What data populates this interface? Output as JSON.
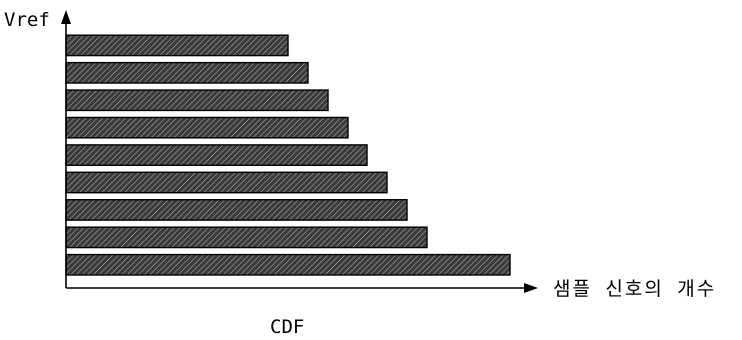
{
  "chart_data": {
    "type": "bar",
    "orientation": "horizontal",
    "ylabel": "Vref",
    "xlabel": "샘플 신호의 개수",
    "caption": "CDF",
    "grid": false,
    "bar_fill_pattern": "diagonal-hatch",
    "colors": {
      "bar_fill": "#3a3a3a",
      "hatch": "#bdbdbd",
      "outline": "#000000"
    },
    "bars": [
      {
        "level": 1,
        "count": 444
      },
      {
        "level": 2,
        "count": 361
      },
      {
        "level": 3,
        "count": 341
      },
      {
        "level": 4,
        "count": 321
      },
      {
        "level": 5,
        "count": 301
      },
      {
        "level": 6,
        "count": 282
      },
      {
        "level": 7,
        "count": 262
      },
      {
        "level": 8,
        "count": 242
      },
      {
        "level": 9,
        "count": 222
      }
    ],
    "xlim": [
      0,
      450
    ],
    "ylim": [
      0,
      9.7
    ]
  }
}
